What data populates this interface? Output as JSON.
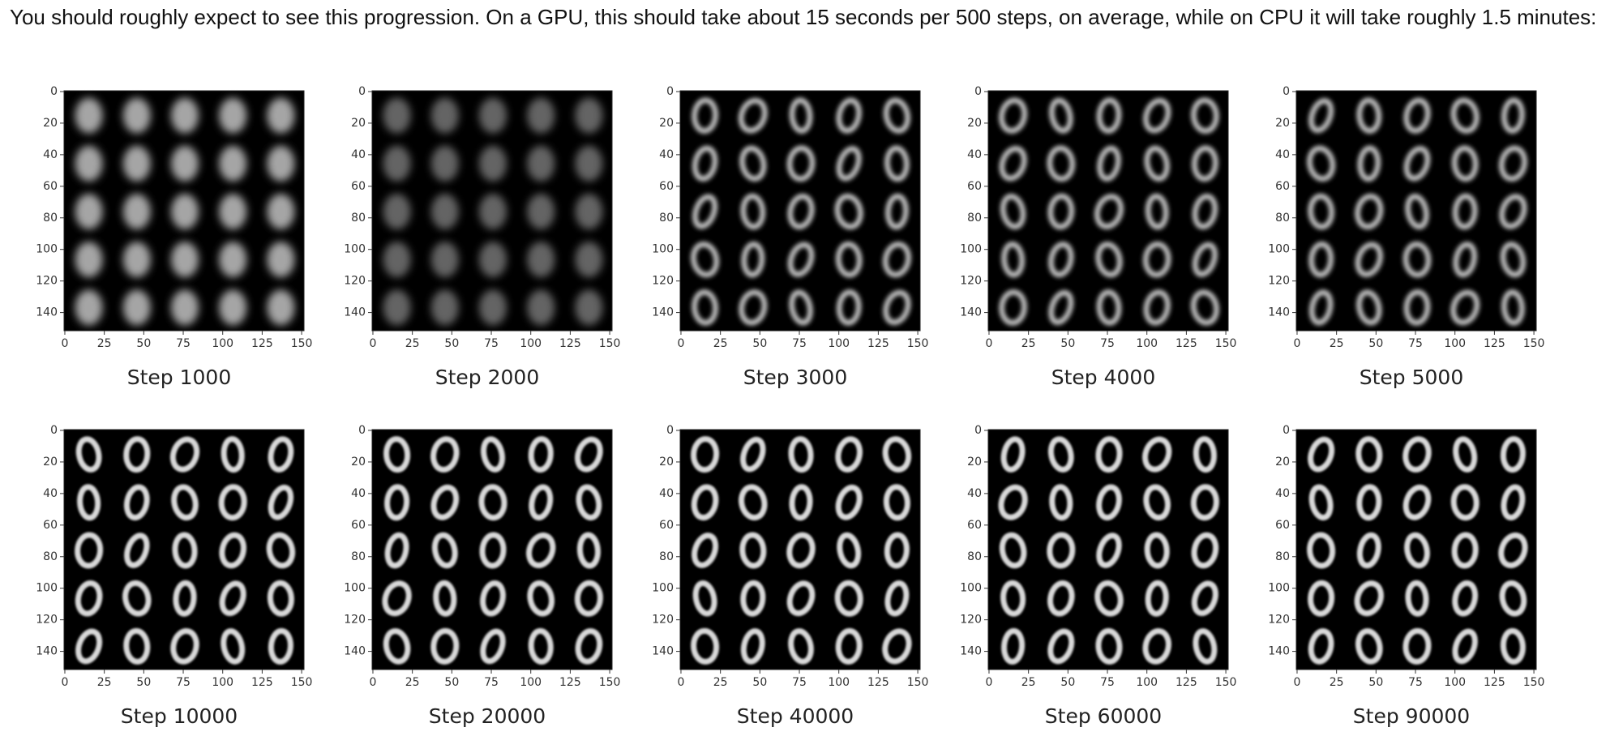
{
  "text": "You should roughly expect to see this progression. On a GPU, this should take about 15 seconds per 500 steps, on average, while on CPU it will take roughly 1.5 minutes:",
  "axes": {
    "xlim": [
      -0.5,
      151.5
    ],
    "ylim": [
      -0.5,
      151.5
    ],
    "xticks": [
      0,
      25,
      50,
      75,
      100,
      125,
      150
    ],
    "yticks": [
      0,
      20,
      40,
      60,
      80,
      100,
      120,
      140
    ]
  },
  "panels": [
    {
      "caption": "Step 1000"
    },
    {
      "caption": "Step 2000"
    },
    {
      "caption": "Step 3000"
    },
    {
      "caption": "Step 4000"
    },
    {
      "caption": "Step 5000"
    },
    {
      "caption": "Step 10000"
    },
    {
      "caption": "Step 20000"
    },
    {
      "caption": "Step 40000"
    },
    {
      "caption": "Step 60000"
    },
    {
      "caption": "Step 90000"
    }
  ]
}
